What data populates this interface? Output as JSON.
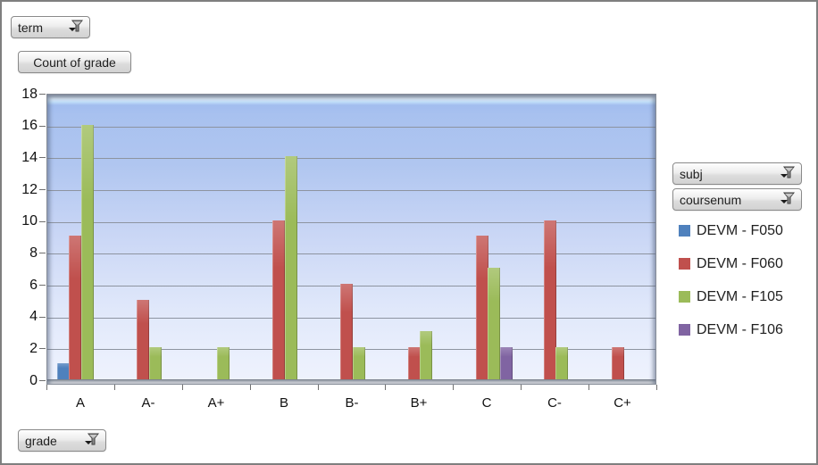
{
  "window": {
    "background": "#ffffff",
    "border_color": "#7f7f7f"
  },
  "filters": {
    "term": {
      "label": "term"
    },
    "subj": {
      "label": "subj"
    },
    "coursenum": {
      "label": "coursenum"
    },
    "grade": {
      "label": "grade"
    }
  },
  "value_field_button": {
    "label": "Count of grade"
  },
  "icons": {
    "filter_dropdown": "funnel-with-dropdown-arrow"
  },
  "chart_data": {
    "type": "bar",
    "title": "",
    "categories": [
      "A",
      "A-",
      "A+",
      "B",
      "B-",
      "B+",
      "C",
      "C-",
      "C+"
    ],
    "series": [
      {
        "name": "DEVM - F050",
        "color": "#4f81bd",
        "values": [
          1,
          0,
          0,
          0,
          0,
          0,
          0,
          0,
          0
        ]
      },
      {
        "name": "DEVM - F060",
        "color": "#c0504d",
        "values": [
          9,
          5,
          0,
          10,
          6,
          2,
          9,
          10,
          2
        ]
      },
      {
        "name": "DEVM - F105",
        "color": "#9bbb59",
        "values": [
          16,
          2,
          2,
          14,
          2,
          3,
          7,
          2,
          0
        ]
      },
      {
        "name": "DEVM - F106",
        "color": "#8064a2",
        "values": [
          0,
          0,
          0,
          0,
          0,
          0,
          2,
          0,
          0
        ]
      }
    ],
    "xlabel": "grade",
    "ylabel": "Count of grade",
    "ylim": [
      0,
      18
    ],
    "ytick_step": 2,
    "yticks": [
      0,
      2,
      4,
      6,
      8,
      10,
      12,
      14,
      16,
      18
    ],
    "grid": true,
    "legend_position": "right",
    "plot_style": "blue-gradient-glossy-bevel",
    "gridline_color": "#8d94a0"
  }
}
